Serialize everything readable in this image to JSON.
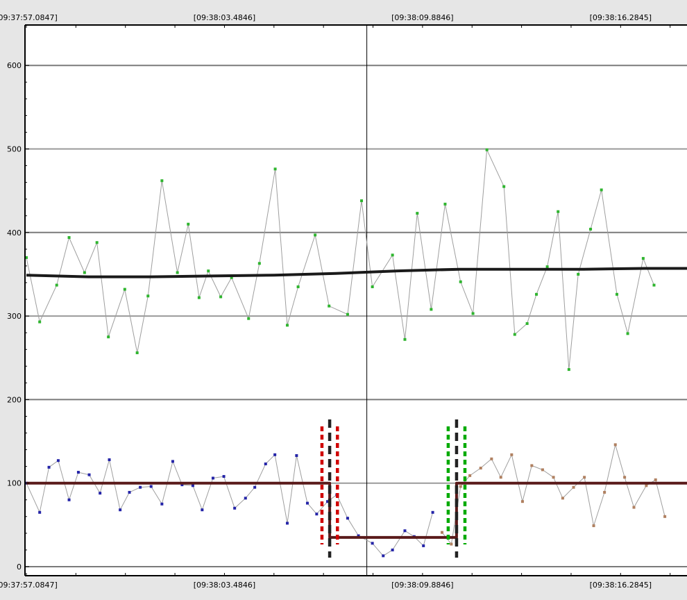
{
  "chart_data": {
    "type": "line",
    "title": "",
    "xlabel": "",
    "ylabel": "",
    "ylim": [
      0,
      620
    ],
    "grid": true,
    "x_tick_labels": [
      "[09:37:57.0847]",
      "[09:38:03.4846]",
      "[09:38:09.8846]",
      "[09:38:16.2845]"
    ],
    "x_tick_values_s": [
      0.0,
      6.3999,
      12.7999,
      19.1998
    ],
    "y_ticks": [
      0,
      100,
      200,
      300,
      400,
      500,
      600
    ],
    "cursor_x_s": 11.0,
    "series": [
      {
        "color": "#9e9e9e",
        "marker_color": "#2fb52f",
        "x_s": [
          0.0,
          0.43,
          0.98,
          1.38,
          1.88,
          2.28,
          2.65,
          3.18,
          3.58,
          3.93,
          4.38,
          4.88,
          5.23,
          5.58,
          5.88,
          6.28,
          6.63,
          7.18,
          7.53,
          8.04,
          8.43,
          8.78,
          9.33,
          9.78,
          10.38,
          10.83,
          11.18,
          11.83,
          12.23,
          12.63,
          13.08,
          13.53,
          14.03,
          14.43,
          14.88,
          15.43,
          15.78,
          16.18,
          16.48,
          16.83,
          17.18,
          17.53,
          17.83,
          18.23,
          18.58,
          19.08,
          19.43,
          19.93,
          20.28
        ],
        "values": [
          370,
          293,
          337,
          394,
          352,
          388,
          275,
          332,
          256,
          324,
          462,
          352,
          410,
          322,
          354,
          323,
          346,
          297,
          363,
          476,
          289,
          335,
          397,
          312,
          302,
          438,
          335,
          373,
          272,
          423,
          308,
          434,
          341,
          303,
          499,
          455,
          278,
          291,
          326,
          359,
          425,
          236,
          350,
          404,
          451,
          326,
          279,
          369,
          337
        ]
      },
      {
        "color": "#1a1a1a",
        "x_s": [
          0,
          2,
          4,
          6,
          8,
          10,
          12,
          14,
          16,
          18,
          20,
          21.8
        ],
        "values": [
          349,
          347,
          347,
          348,
          349,
          351,
          354,
          356,
          356,
          356,
          357,
          357
        ]
      },
      {
        "color": "#9e9e9e",
        "marker_color": "#2424a8",
        "x_s": [
          0.0,
          0.43,
          0.73,
          1.03,
          1.38,
          1.68,
          2.03,
          2.38,
          2.68,
          3.03,
          3.33,
          3.68,
          4.03,
          4.38,
          4.73,
          5.03,
          5.38,
          5.68,
          6.03,
          6.38,
          6.73,
          7.08,
          7.38,
          7.73,
          8.03,
          8.43,
          8.73,
          9.08,
          9.38,
          9.73,
          10.03,
          10.38,
          10.73,
          11.18,
          11.53,
          11.83,
          12.23,
          12.53,
          12.83,
          13.13
        ],
        "values": [
          100,
          65,
          119,
          127,
          80,
          113,
          110,
          88,
          128,
          68,
          89,
          95,
          96,
          75,
          126,
          98,
          97,
          68,
          106,
          108,
          70,
          82,
          95,
          123,
          134,
          52,
          133,
          76,
          63,
          78,
          86,
          58,
          37,
          28,
          13,
          20,
          43,
          36,
          25,
          65
        ]
      },
      {
        "color": "#9e9e9e",
        "marker_color": "#b08060",
        "x_s": [
          13.43,
          13.73,
          14.03,
          14.33,
          14.68,
          15.03,
          15.33,
          15.68,
          16.03,
          16.33,
          16.68,
          17.03,
          17.33,
          17.68,
          18.03,
          18.33,
          18.68,
          19.03,
          19.33,
          19.63,
          20.03,
          20.33,
          20.63
        ],
        "values": [
          41,
          27,
          96,
          109,
          118,
          129,
          107,
          134,
          78,
          121,
          116,
          107,
          82,
          95,
          107,
          49,
          89,
          146,
          107,
          71,
          97,
          104,
          60
        ]
      },
      {
        "color": "#5a1a1a",
        "x_s": [
          0.0,
          9.8,
          9.8,
          13.9,
          13.9,
          21.8
        ],
        "values": [
          100,
          100,
          35,
          35,
          100,
          100
        ]
      }
    ],
    "markers": [
      {
        "color": "#d00000",
        "x_s": 9.55
      },
      {
        "color": "#222222",
        "x_s": 9.8
      },
      {
        "color": "#d00000",
        "x_s": 10.05
      },
      {
        "color": "#00aa00",
        "x_s": 13.63
      },
      {
        "color": "#222222",
        "x_s": 13.9
      },
      {
        "color": "#00aa00",
        "x_s": 14.17
      }
    ]
  }
}
